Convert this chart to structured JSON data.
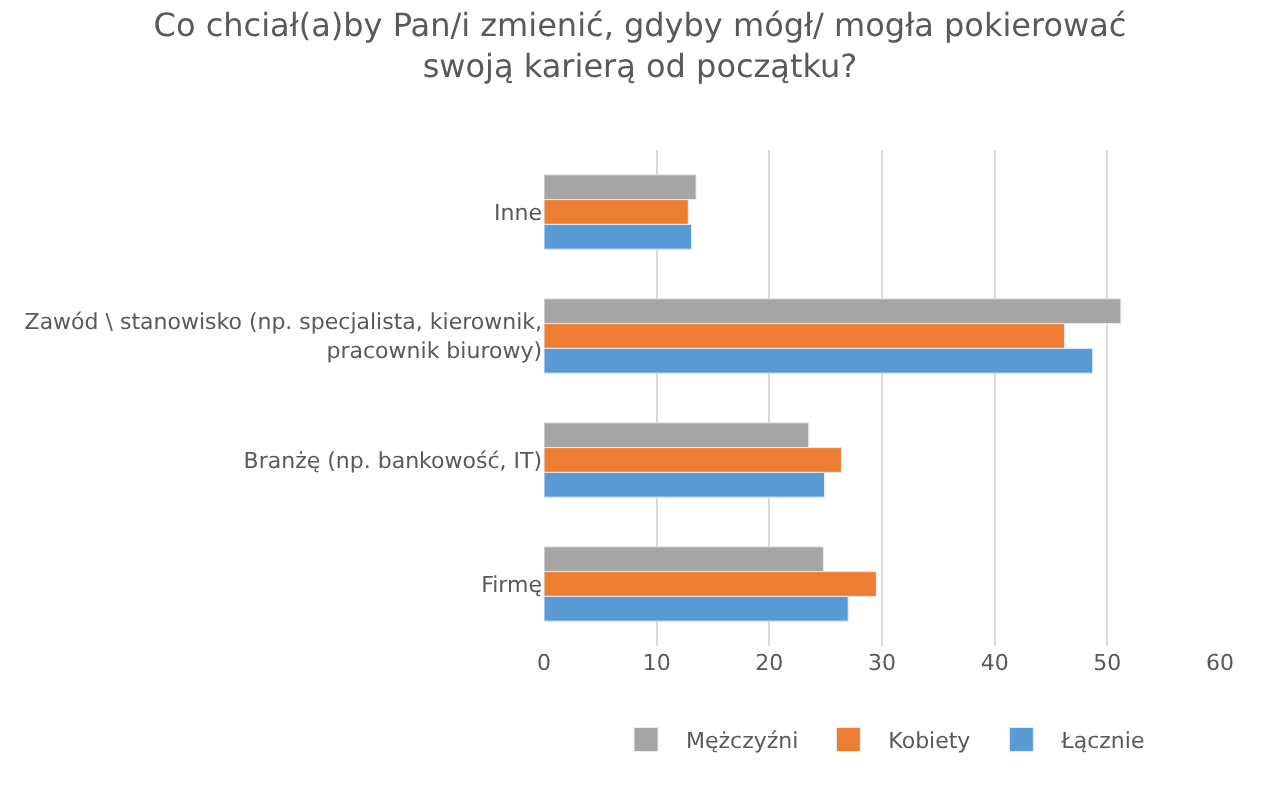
{
  "chart_data": {
    "type": "bar",
    "orientation": "horizontal",
    "title": "Co chciał(a)by Pan/i zmienić, gdyby mógł/ mogła pokierować swoją karierą od początku?",
    "categories": [
      "Inne",
      "Zawód \\ stanowisko (np. specjalista, kierownik, pracownik biurowy)",
      "Branżę (np. bankowość, IT)",
      "Firmę"
    ],
    "series": [
      {
        "name": "Mężczyźni",
        "color": "#a5a5a5",
        "values": [
          13.5,
          51.2,
          23.5,
          24.8
        ]
      },
      {
        "name": "Kobiety",
        "color": "#ed7d31",
        "values": [
          12.8,
          46.2,
          26.4,
          29.5
        ]
      },
      {
        "name": "Łącznie",
        "color": "#5b9bd5",
        "values": [
          13.1,
          48.7,
          24.9,
          27.0
        ]
      }
    ],
    "xlim": [
      0,
      60
    ],
    "xticks": [
      0,
      10,
      20,
      30,
      40,
      50,
      60
    ],
    "grid": "x",
    "legend": "bottom"
  }
}
